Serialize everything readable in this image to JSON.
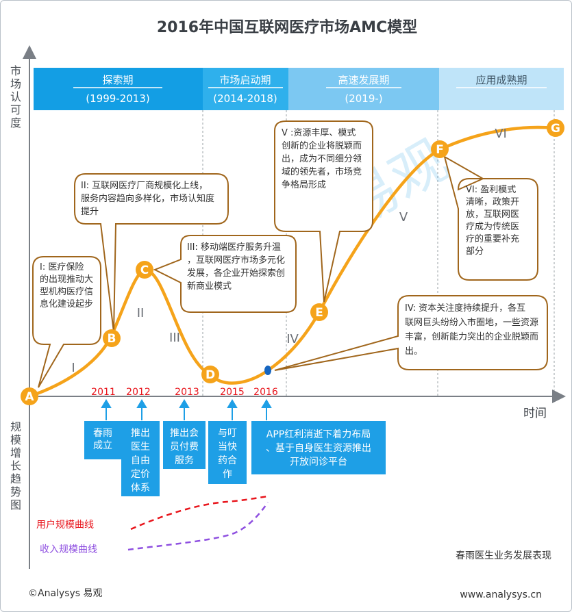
{
  "title": "2016年中国互联网医疗市场AMC模型",
  "y_axis_top": "市场认可度",
  "y_axis_bottom": "规模增长趋势图",
  "x_axis": "时间",
  "phases": [
    {
      "name": "探索期",
      "years": "(1999-2013)"
    },
    {
      "name": "市场启动期",
      "years": "(2014-2018)"
    },
    {
      "name": "高速发展期",
      "years": "(2019-)"
    },
    {
      "name": "应用成熟期",
      "years": ""
    }
  ],
  "points": [
    "A",
    "B",
    "C",
    "D",
    "E",
    "F",
    "G"
  ],
  "stage_numerals": [
    "I",
    "II",
    "III",
    "IV",
    "V",
    "VI"
  ],
  "callouts": {
    "I": "I: 医疗保险的出现推动大型机构医疗信息化建设起步",
    "II": "II: 互联网医疗厂商规模化上线，服务内容趋向多样化，市场认知度提升",
    "III": "III: 移动端医疗服务升温，互联网医疗市场多元化发展，各企业开始探索创新商业模式",
    "IV": "IV: 资本关注度持续提升，各互联网巨头纷纷入市圈地，一些资源丰富，创新能力突出的企业脱颖而出。",
    "V": "V :资源丰厚、模式创新的企业将脱颖而出，成为不同细分领域的领先者，市场竞争格局形成",
    "VI": "VI: 盈利模式清晰，政策开放，互联网医疗成为传统医疗的重要补充部分"
  },
  "years": [
    "2011",
    "2012",
    "2013",
    "2015",
    "2016"
  ],
  "events": [
    "春雨成立",
    "推出医生自由定价体系",
    "推出会员付费服务",
    "与叮当快药合作",
    "APP红利消逝下着力布局、基于自身医生资源推出开放问诊平台"
  ],
  "legend": {
    "user": "用户规模曲线",
    "revenue": "收入规模曲线"
  },
  "footnote": "春雨医生业务发展表现",
  "copyright": "©Analysys 易观",
  "website": "www.analysys.cn",
  "watermark": "易观",
  "colors": {
    "curve": "#f5a31a",
    "callout_border": "#a0661c",
    "event_box": "#1e9fe6",
    "year": "#e8141b",
    "user_curve": "#e8141b",
    "revenue_curve": "#8e4fe0"
  }
}
